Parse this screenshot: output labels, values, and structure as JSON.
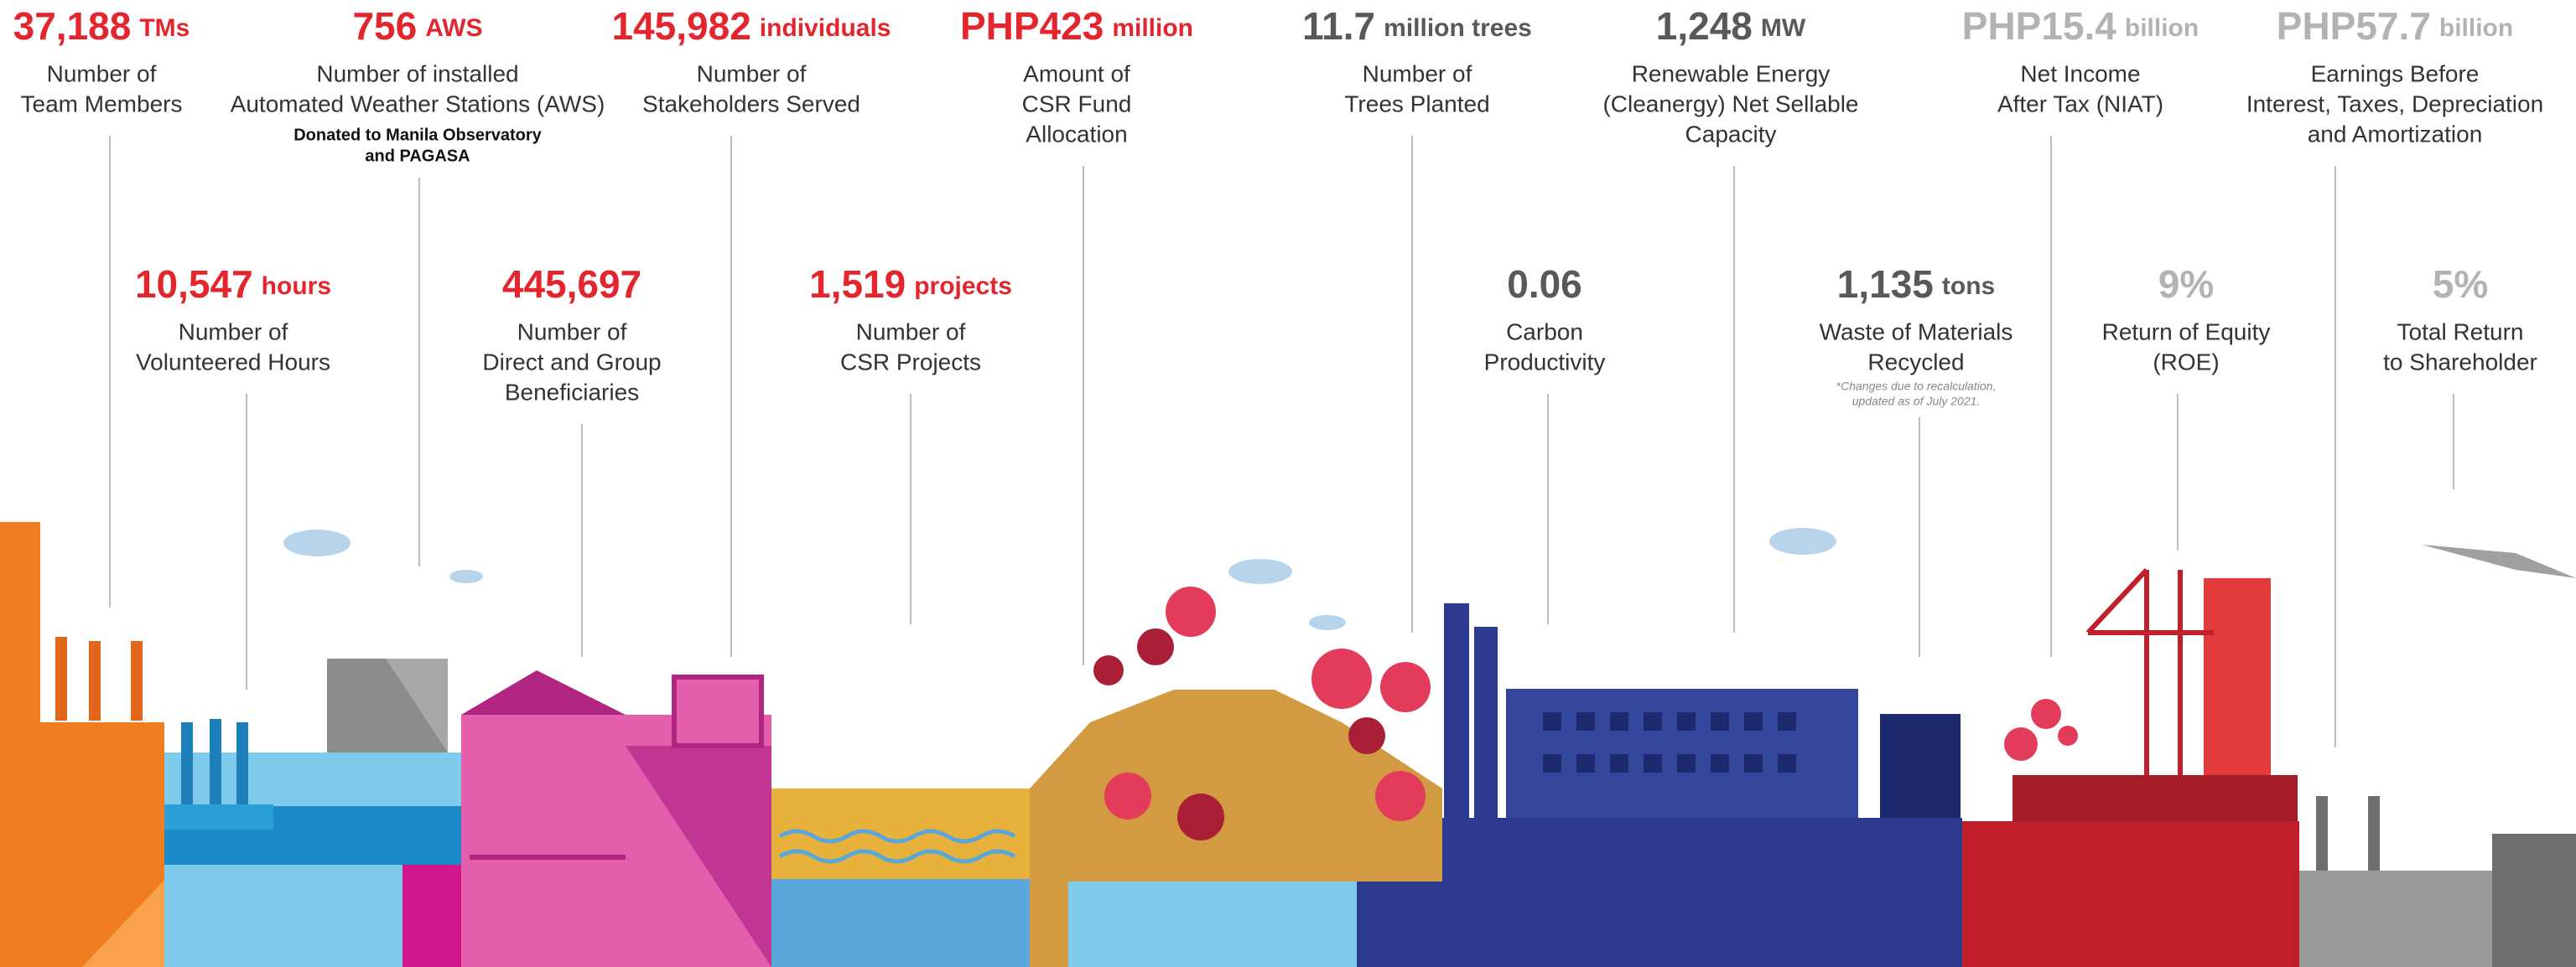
{
  "upper_stats": [
    {
      "value": "37,188",
      "unit": "TMs",
      "label": [
        "Number of",
        "Team Members"
      ],
      "color": "#e3262e"
    },
    {
      "value": "756",
      "unit": "AWS",
      "label": [
        "Number of installed",
        "Automated Weather Stations (AWS)"
      ],
      "note": [
        "Donated to Manila Observatory",
        "and PAGASA"
      ],
      "color": "#e3262e"
    },
    {
      "value": "145,982",
      "unit": "individuals",
      "label": [
        "Number of",
        "Stakeholders Served"
      ],
      "color": "#e3262e"
    },
    {
      "value": "PHP423",
      "unit": "million",
      "label": [
        "Amount of",
        "CSR Fund",
        "Allocation"
      ],
      "color": "#e3262e"
    },
    {
      "value": "11.7",
      "unit": "million trees",
      "label": [
        "Number of",
        "Trees Planted"
      ],
      "color": "#58595b"
    },
    {
      "value": "1,248",
      "unit": "MW",
      "label": [
        "Renewable Energy",
        "(Cleanergy) Net Sellable",
        "Capacity"
      ],
      "color": "#58595b"
    },
    {
      "value": "PHP15.4",
      "unit": "billion",
      "label": [
        "Net Income",
        "After Tax (NIAT)"
      ],
      "color": "#b3b3b3"
    },
    {
      "value": "PHP57.7",
      "unit": "billion",
      "label": [
        "Earnings Before",
        "Interest, Taxes, Depreciation",
        "and Amortization"
      ],
      "color": "#b3b3b3"
    }
  ],
  "lower_stats": [
    {
      "value": "10,547",
      "unit": "hours",
      "label": [
        "Number of",
        "Volunteered Hours"
      ],
      "color": "#e3262e"
    },
    {
      "value": "445,697",
      "label": [
        "Number of",
        "Direct and Group",
        "Beneficiaries"
      ],
      "color": "#e3262e"
    },
    {
      "value": "1,519",
      "unit": "projects",
      "label": [
        "Number of",
        "CSR Projects"
      ],
      "color": "#e3262e"
    },
    {
      "value": "0.06",
      "label": [
        "Carbon",
        "Productivity"
      ],
      "color": "#58595b"
    },
    {
      "value": "1,135",
      "unit": "tons",
      "label": [
        "Waste of Materials",
        "Recycled"
      ],
      "note": [
        "*Changes due to recalculation,",
        "updated as of July 2021."
      ],
      "color": "#58595b"
    },
    {
      "value": "9%",
      "label": [
        "Return of Equity",
        "(ROE)"
      ],
      "color": "#b3b3b3"
    },
    {
      "value": "5%",
      "label": [
        "Total Return",
        "to Shareholder"
      ],
      "color": "#b3b3b3"
    }
  ]
}
